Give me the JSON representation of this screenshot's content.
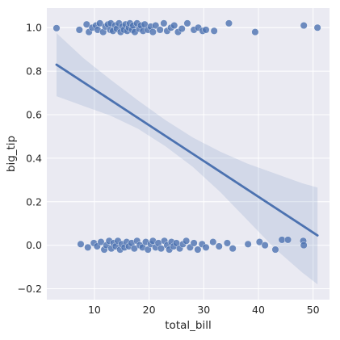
{
  "chart_data": {
    "type": "scatter",
    "xlabel": "total_bill",
    "ylabel": "big_tip",
    "xlim": [
      1.3,
      53.0
    ],
    "ylim": [
      -0.25,
      1.09
    ],
    "xticks": [
      10,
      20,
      30,
      40,
      50
    ],
    "yticks": [
      -0.2,
      0.0,
      0.2,
      0.4,
      0.6,
      0.8,
      1.0
    ],
    "xtick_labels": [
      "10",
      "20",
      "30",
      "40",
      "50"
    ],
    "ytick_labels": [
      "−0.2",
      "0.0",
      "0.2",
      "0.4",
      "0.6",
      "0.8",
      "1.0"
    ],
    "grid": true,
    "colors": {
      "background": "#eaeaf2",
      "grid": "#ffffff",
      "points": "#4c72b0",
      "line": "#4c72b0",
      "band": "#4c72b0"
    },
    "points_big_tip_1": [
      [
        3.07,
        0.998
      ],
      [
        7.25,
        0.99
      ],
      [
        8.58,
        1.015
      ],
      [
        9.0,
        0.98
      ],
      [
        9.6,
        1.0
      ],
      [
        10.3,
        1.01
      ],
      [
        10.6,
        0.99
      ],
      [
        11.0,
        1.02
      ],
      [
        11.6,
        0.98
      ],
      [
        12.0,
        1.005
      ],
      [
        12.5,
        1.015
      ],
      [
        12.9,
        0.99
      ],
      [
        13.0,
        1.02
      ],
      [
        13.4,
        0.985
      ],
      [
        13.8,
        1.01
      ],
      [
        14.1,
        0.995
      ],
      [
        14.5,
        1.02
      ],
      [
        14.8,
        0.98
      ],
      [
        15.1,
        1.005
      ],
      [
        15.4,
        0.99
      ],
      [
        15.7,
        1.015
      ],
      [
        16.0,
        0.985
      ],
      [
        16.3,
        1.0
      ],
      [
        16.5,
        1.02
      ],
      [
        16.9,
        0.99
      ],
      [
        17.1,
        1.01
      ],
      [
        17.4,
        0.98
      ],
      [
        17.8,
        1.02
      ],
      [
        18.2,
        0.995
      ],
      [
        18.5,
        1.01
      ],
      [
        18.9,
        0.985
      ],
      [
        19.2,
        1.015
      ],
      [
        19.8,
        0.99
      ],
      [
        20.3,
        1.005
      ],
      [
        20.7,
        0.98
      ],
      [
        21.2,
        1.01
      ],
      [
        22.0,
        0.99
      ],
      [
        22.7,
        1.02
      ],
      [
        23.3,
        0.985
      ],
      [
        24.0,
        1.0
      ],
      [
        24.6,
        1.01
      ],
      [
        25.3,
        0.98
      ],
      [
        26.0,
        0.995
      ],
      [
        27.0,
        1.02
      ],
      [
        28.2,
        0.99
      ],
      [
        29.0,
        1.0
      ],
      [
        29.8,
        0.985
      ],
      [
        30.4,
        0.99
      ],
      [
        31.9,
        0.985
      ],
      [
        34.6,
        1.02
      ],
      [
        39.4,
        0.98
      ],
      [
        48.3,
        1.01
      ],
      [
        50.8,
        1.0
      ]
    ],
    "points_big_tip_0": [
      [
        7.5,
        0.005
      ],
      [
        8.8,
        -0.01
      ],
      [
        9.9,
        0.01
      ],
      [
        10.5,
        -0.005
      ],
      [
        11.2,
        0.015
      ],
      [
        11.8,
        -0.02
      ],
      [
        12.2,
        0.0
      ],
      [
        12.7,
        0.02
      ],
      [
        13.1,
        -0.015
      ],
      [
        13.5,
        0.01
      ],
      [
        13.9,
        -0.005
      ],
      [
        14.3,
        0.02
      ],
      [
        14.7,
        -0.02
      ],
      [
        15.0,
        0.005
      ],
      [
        15.5,
        -0.01
      ],
      [
        15.9,
        0.015
      ],
      [
        16.3,
        -0.005
      ],
      [
        16.8,
        0.01
      ],
      [
        17.3,
        -0.015
      ],
      [
        17.8,
        0.02
      ],
      [
        18.3,
        0.0
      ],
      [
        18.8,
        -0.01
      ],
      [
        19.4,
        0.015
      ],
      [
        19.8,
        -0.02
      ],
      [
        20.3,
        0.005
      ],
      [
        20.7,
        0.02
      ],
      [
        21.2,
        -0.01
      ],
      [
        21.7,
        0.01
      ],
      [
        22.2,
        -0.015
      ],
      [
        22.8,
        0.02
      ],
      [
        23.3,
        0.0
      ],
      [
        23.7,
        -0.02
      ],
      [
        24.1,
        0.015
      ],
      [
        24.5,
        -0.005
      ],
      [
        25.0,
        0.01
      ],
      [
        25.6,
        -0.015
      ],
      [
        26.2,
        0.005
      ],
      [
        26.8,
        0.02
      ],
      [
        27.5,
        -0.01
      ],
      [
        28.2,
        0.01
      ],
      [
        28.9,
        -0.02
      ],
      [
        29.7,
        0.005
      ],
      [
        30.4,
        -0.01
      ],
      [
        31.7,
        0.015
      ],
      [
        32.8,
        -0.005
      ],
      [
        34.3,
        0.01
      ],
      [
        35.3,
        -0.015
      ],
      [
        38.1,
        0.005
      ],
      [
        40.2,
        0.015
      ],
      [
        41.2,
        0.0
      ],
      [
        43.1,
        -0.02
      ],
      [
        44.3,
        0.025
      ],
      [
        45.4,
        0.025
      ],
      [
        48.2,
        0.02
      ],
      [
        48.3,
        0.0
      ]
    ],
    "regression": {
      "x": [
        3.07,
        50.81
      ],
      "y": [
        0.83,
        0.045
      ]
    },
    "confidence_band": {
      "x": [
        3.07,
        8.0,
        13.0,
        18.0,
        23.0,
        28.0,
        33.0,
        38.0,
        43.0,
        48.0,
        50.81
      ],
      "upper": [
        0.975,
        0.86,
        0.76,
        0.665,
        0.575,
        0.495,
        0.43,
        0.375,
        0.33,
        0.285,
        0.265
      ],
      "lower": [
        0.685,
        0.64,
        0.595,
        0.535,
        0.455,
        0.36,
        0.245,
        0.115,
        -0.015,
        -0.125,
        -0.18
      ]
    }
  }
}
